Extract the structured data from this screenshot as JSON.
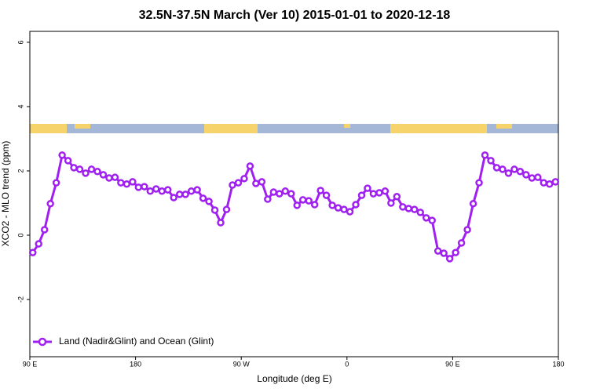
{
  "chart_data": {
    "type": "line",
    "title": "32.5N-37.5N March (Ver 10)   2015-01-01 to 2020-12-18",
    "x_label": "Longitude (deg E)",
    "y_label": "XCO2 - MLO trend (ppm)",
    "xlim": [
      90,
      540
    ],
    "ylim": [
      -3.78,
      6.34
    ],
    "xticks": [
      {
        "value": 90,
        "label": "90 E"
      },
      180,
      {
        "value": 270,
        "label": "90 W"
      },
      {
        "value": 360,
        "label": "0"
      },
      {
        "value": 450,
        "label": "90 E"
      },
      {
        "value": 540,
        "label": "180"
      }
    ],
    "yticks": [
      -2,
      0,
      2,
      4,
      6
    ],
    "legend": "bottom-left",
    "x": [
      92.5,
      97.5,
      102.5,
      107.5,
      112.5,
      117.5,
      122.5,
      127.5,
      132.5,
      137.5,
      142.5,
      147.5,
      152.5,
      157.5,
      162.5,
      167.5,
      172.5,
      177.5,
      182.5,
      187.5,
      192.5,
      197.5,
      202.5,
      207.5,
      212.5,
      217.5,
      222.5,
      227.5,
      232.5,
      237.5,
      242.5,
      247.5,
      252.5,
      257.5,
      262.5,
      267.5,
      272.5,
      277.5,
      282.5,
      287.5,
      292.5,
      297.5,
      302.5,
      307.5,
      312.5,
      317.5,
      322.5,
      327.5,
      332.5,
      337.5,
      342.5,
      347.5,
      352.5,
      357.5,
      362.5,
      367.5,
      372.5,
      377.5,
      382.5,
      387.5,
      392.5,
      397.5,
      402.5,
      407.5,
      412.5,
      417.5,
      422.5,
      427.5,
      432.5,
      437.5,
      442.5,
      447.5,
      452.5,
      457.5,
      462.5,
      467.5,
      472.5,
      477.5,
      482.5,
      487.5,
      492.5,
      497.5,
      502.5,
      507.5,
      512.5,
      517.5,
      522.5,
      527.5,
      532.5,
      537.5
    ],
    "series": [
      {
        "name": "Land (Nadir&Glint) and Ocean (Glint)",
        "color": "#a020f0",
        "values": [
          -0.54,
          -0.27,
          0.17,
          0.98,
          1.63,
          2.49,
          2.32,
          2.1,
          2.05,
          1.93,
          2.05,
          1.98,
          1.88,
          1.78,
          1.8,
          1.63,
          1.59,
          1.66,
          1.49,
          1.51,
          1.37,
          1.44,
          1.37,
          1.41,
          1.17,
          1.27,
          1.27,
          1.37,
          1.41,
          1.15,
          1.05,
          0.78,
          0.39,
          0.8,
          1.56,
          1.63,
          1.76,
          2.15,
          1.61,
          1.66,
          1.12,
          1.34,
          1.29,
          1.37,
          1.29,
          0.93,
          1.1,
          1.07,
          0.95,
          1.39,
          1.24,
          0.93,
          0.85,
          0.8,
          0.73,
          0.95,
          1.24,
          1.46,
          1.29,
          1.32,
          1.37,
          1.0,
          1.2,
          0.88,
          0.83,
          0.8,
          0.71,
          0.54,
          0.46,
          -0.49,
          -0.56,
          -0.73,
          -0.54,
          -0.24,
          0.17,
          0.98,
          1.63,
          2.49,
          2.32,
          2.1,
          2.05,
          1.93,
          2.05,
          1.98,
          1.88,
          1.78,
          1.8,
          1.63,
          1.59,
          1.66
        ]
      }
    ]
  }
}
